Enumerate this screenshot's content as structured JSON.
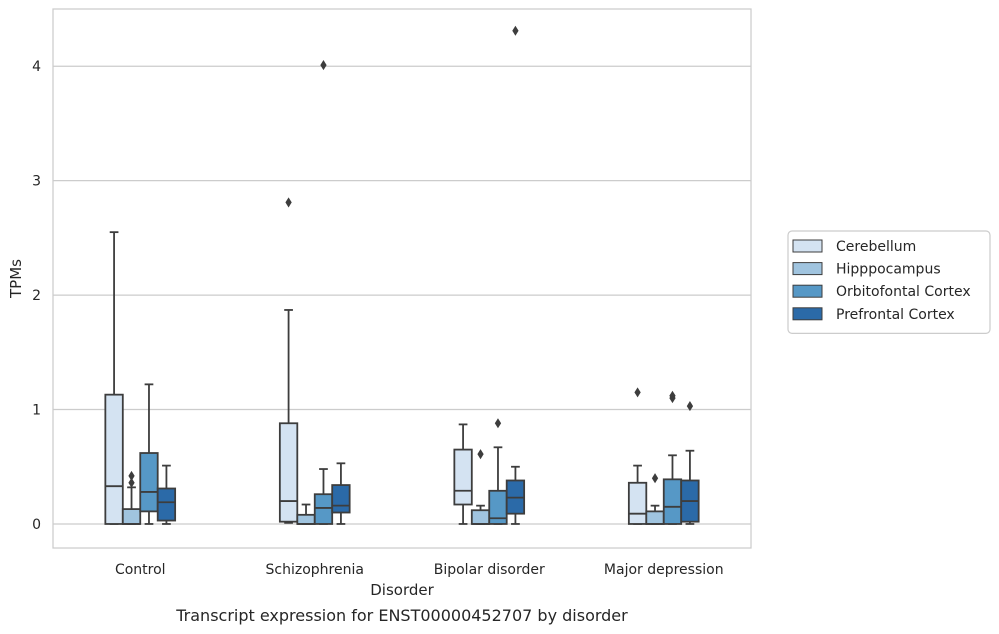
{
  "caption": "Transcript expression for ENST00000452707 by disorder",
  "chart_data": {
    "type": "box",
    "title": "",
    "xlabel": "Disorder",
    "ylabel": "TPMs",
    "ylim": [
      -0.21,
      4.5
    ],
    "yticks": [
      0,
      1,
      2,
      3,
      4
    ],
    "grid": "horizontal",
    "legend_position": "right",
    "categories": [
      "Control",
      "Schizophrenia",
      "Bipolar disorder",
      "Major depression"
    ],
    "series": [
      {
        "name": "Cerebellum",
        "color": "#d4e3f2",
        "boxes": [
          {
            "whisker_low": 0,
            "q1": 0,
            "median": 0.33,
            "q3": 1.13,
            "whisker_high": 2.55,
            "outliers": []
          },
          {
            "whisker_low": 0.01,
            "q1": 0.02,
            "median": 0.2,
            "q3": 0.88,
            "whisker_high": 1.87,
            "outliers": [
              2.81
            ]
          },
          {
            "whisker_low": 0,
            "q1": 0.17,
            "median": 0.29,
            "q3": 0.65,
            "whisker_high": 0.87,
            "outliers": []
          },
          {
            "whisker_low": 0,
            "q1": 0,
            "median": 0.09,
            "q3": 0.36,
            "whisker_high": 0.51,
            "outliers": [
              1.15
            ]
          }
        ]
      },
      {
        "name": "Hipppocampus",
        "color": "#a0c4df",
        "boxes": [
          {
            "whisker_low": 0,
            "q1": 0,
            "median": 0,
            "q3": 0.13,
            "whisker_high": 0.32,
            "outliers": [
              0.36,
              0.42
            ]
          },
          {
            "whisker_low": 0,
            "q1": 0,
            "median": 0,
            "q3": 0.08,
            "whisker_high": 0.17,
            "outliers": []
          },
          {
            "whisker_low": 0,
            "q1": 0,
            "median": 0,
            "q3": 0.12,
            "whisker_high": 0.16,
            "outliers": [
              0.61
            ]
          },
          {
            "whisker_low": 0,
            "q1": 0,
            "median": 0,
            "q3": 0.11,
            "whisker_high": 0.16,
            "outliers": [
              0.4
            ]
          }
        ]
      },
      {
        "name": "Orbitofontal Cortex",
        "color": "#5698c6",
        "boxes": [
          {
            "whisker_low": 0,
            "q1": 0.11,
            "median": 0.28,
            "q3": 0.62,
            "whisker_high": 1.22,
            "outliers": []
          },
          {
            "whisker_low": 0,
            "q1": 0,
            "median": 0.14,
            "q3": 0.26,
            "whisker_high": 0.48,
            "outliers": [
              4.01
            ]
          },
          {
            "whisker_low": 0,
            "q1": 0,
            "median": 0.05,
            "q3": 0.29,
            "whisker_high": 0.67,
            "outliers": [
              0.88
            ]
          },
          {
            "whisker_low": 0,
            "q1": 0,
            "median": 0.15,
            "q3": 0.39,
            "whisker_high": 0.6,
            "outliers": [
              1.1,
              1.12
            ]
          }
        ]
      },
      {
        "name": "Prefrontal Cortex",
        "color": "#2b6aa8",
        "boxes": [
          {
            "whisker_low": 0,
            "q1": 0.03,
            "median": 0.19,
            "q3": 0.31,
            "whisker_high": 0.51,
            "outliers": []
          },
          {
            "whisker_low": 0,
            "q1": 0.1,
            "median": 0.16,
            "q3": 0.34,
            "whisker_high": 0.53,
            "outliers": []
          },
          {
            "whisker_low": 0,
            "q1": 0.09,
            "median": 0.23,
            "q3": 0.38,
            "whisker_high": 0.5,
            "outliers": [
              4.31
            ]
          },
          {
            "whisker_low": 0,
            "q1": 0.02,
            "median": 0.2,
            "q3": 0.38,
            "whisker_high": 0.64,
            "outliers": [
              1.03
            ]
          }
        ]
      }
    ]
  }
}
